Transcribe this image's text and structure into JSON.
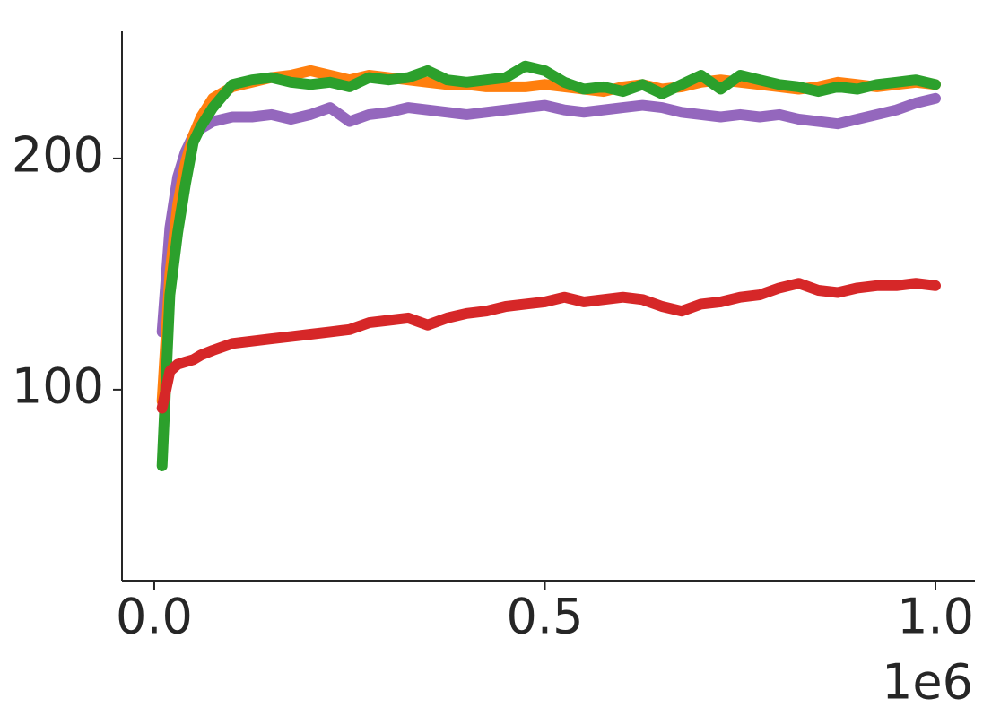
{
  "chart_data": {
    "type": "line",
    "x": [
      10000,
      20000,
      30000,
      40000,
      50000,
      60000,
      75000,
      100000,
      125000,
      150000,
      175000,
      200000,
      225000,
      250000,
      275000,
      300000,
      325000,
      350000,
      375000,
      400000,
      425000,
      450000,
      475000,
      500000,
      525000,
      550000,
      575000,
      600000,
      625000,
      650000,
      675000,
      700000,
      725000,
      750000,
      775000,
      800000,
      825000,
      850000,
      875000,
      900000,
      925000,
      950000,
      975000,
      1000000
    ],
    "series": [
      {
        "color": "#9467bd",
        "values": [
          125,
          170,
          192,
          203,
          210,
          213,
          216,
          218,
          218,
          219,
          217,
          219,
          222,
          216,
          219,
          220,
          222,
          221,
          220,
          219,
          220,
          221,
          222,
          223,
          221,
          220,
          221,
          222,
          223,
          222,
          220,
          219,
          218,
          219,
          218,
          219,
          217,
          216,
          215,
          217,
          219,
          221,
          224,
          226
        ]
      },
      {
        "color": "#ff7f0e",
        "values": [
          95,
          150,
          180,
          198,
          210,
          218,
          226,
          231,
          233,
          235,
          236,
          238,
          236,
          234,
          236,
          235,
          234,
          233,
          232,
          232,
          231,
          231,
          231,
          232,
          231,
          230,
          229,
          231,
          232,
          230,
          231,
          233,
          234,
          233,
          232,
          231,
          230,
          231,
          233,
          232,
          231,
          232,
          233,
          232
        ]
      },
      {
        "color": "#2ca02c",
        "values": [
          67,
          141,
          168,
          189,
          207,
          214,
          222,
          232,
          234,
          235,
          233,
          232,
          233,
          231,
          235,
          234,
          235,
          238,
          234,
          233,
          234,
          235,
          240,
          238,
          233,
          230,
          231,
          229,
          232,
          228,
          232,
          236,
          230,
          236,
          234,
          232,
          231,
          229,
          231,
          230,
          232,
          233,
          234,
          232
        ]
      },
      {
        "color": "#d62728",
        "values": [
          92,
          108,
          111,
          112,
          113,
          115,
          117,
          120,
          121,
          122,
          123,
          124,
          125,
          126,
          129,
          130,
          131,
          128,
          131,
          133,
          134,
          136,
          137,
          138,
          140,
          138,
          139,
          140,
          139,
          136,
          134,
          137,
          138,
          140,
          141,
          144,
          146,
          143,
          142,
          144,
          145,
          145,
          146,
          145
        ]
      }
    ],
    "xlim": [
      -41300,
      1050500
    ],
    "xticks": [
      {
        "value": 0,
        "label": "0.0"
      },
      {
        "value": 500000,
        "label": "0.5"
      },
      {
        "value": 1000000,
        "label": "1.0"
      }
    ],
    "x_offset_label": "1e6",
    "ylim": [
      17.4,
      255
    ],
    "yticks": [
      100,
      200
    ],
    "grid": false
  }
}
